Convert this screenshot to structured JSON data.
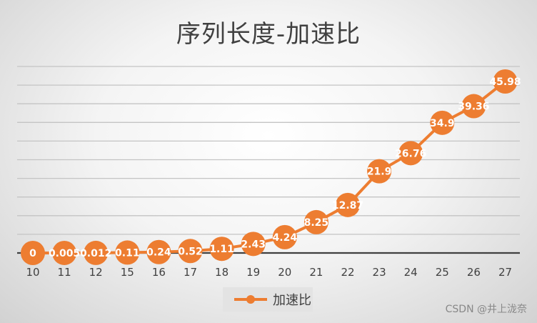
{
  "chart_data": {
    "type": "line",
    "title": "序列长度-加速比",
    "xlabel": "",
    "ylabel": "",
    "categories": [
      "10",
      "11",
      "12",
      "15",
      "16",
      "17",
      "18",
      "19",
      "20",
      "21",
      "22",
      "23",
      "24",
      "25",
      "26",
      "27"
    ],
    "series": [
      {
        "name": "加速比",
        "values": [
          0,
          0.005,
          0.012,
          0.11,
          0.24,
          0.52,
          1.11,
          2.43,
          4.24,
          8.25,
          12.87,
          21.9,
          26.76,
          34.9,
          39.36,
          45.98
        ],
        "labels": [
          "0",
          "0.005",
          "0.012",
          "0.11",
          "0.24",
          "0.52",
          "1.11",
          "2.43",
          "4.24",
          "8.25",
          "12.87",
          "21.9",
          "26.76",
          "34.9",
          "39.36",
          "45.98"
        ]
      }
    ],
    "ylim": [
      0,
      50
    ],
    "ytick_step": 5,
    "y_tick_labels_visible": false,
    "grid": true,
    "legend_position": "bottom",
    "colors": {
      "series": "#ed7d31",
      "gridline": "#c4c4c4",
      "axis": "#404040",
      "text": "#404040",
      "data_label": "#ffffff"
    }
  },
  "watermark": "CSDN @井上泷奈"
}
